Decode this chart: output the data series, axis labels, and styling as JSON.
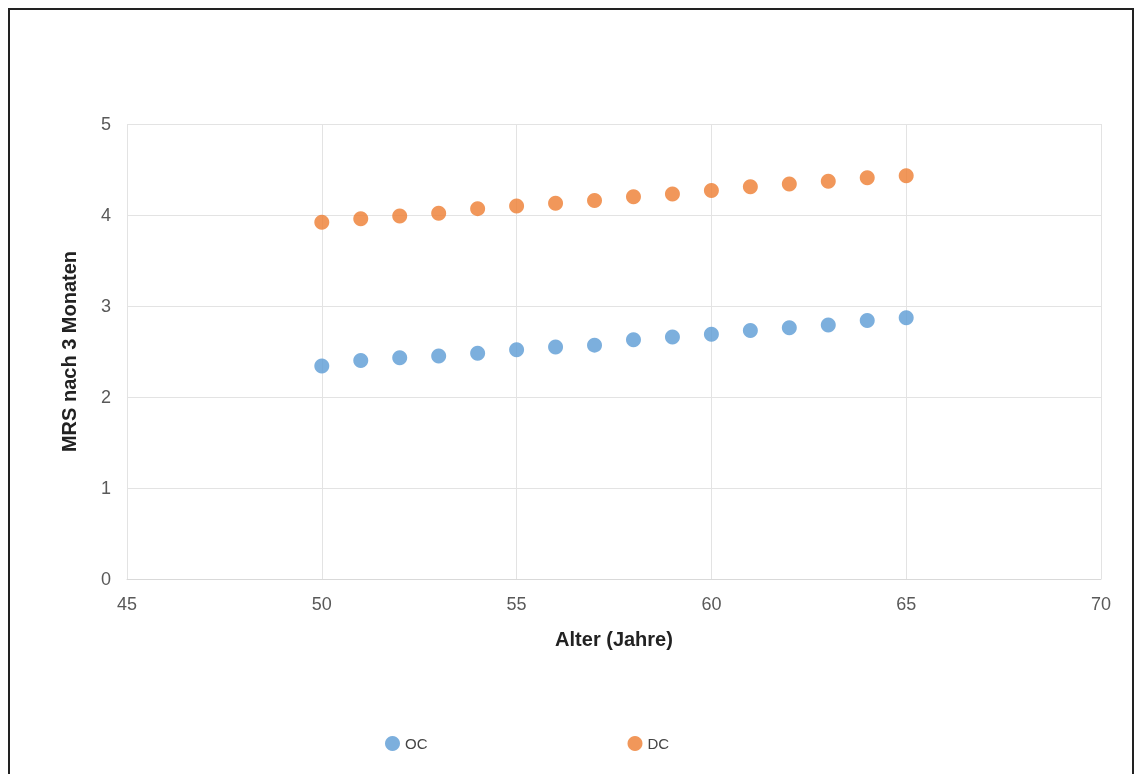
{
  "chart_data": {
    "type": "scatter",
    "xlabel": "Alter (Jahre)",
    "ylabel": "MRS nach 3 Monaten",
    "x": [
      50,
      51,
      52,
      53,
      54,
      55,
      56,
      57,
      58,
      59,
      60,
      61,
      62,
      63,
      64,
      65
    ],
    "series": [
      {
        "name": "OC",
        "color": "#5b9bd5",
        "values": [
          2.34,
          2.4,
          2.43,
          2.45,
          2.48,
          2.52,
          2.55,
          2.57,
          2.63,
          2.66,
          2.69,
          2.73,
          2.76,
          2.79,
          2.84,
          2.87
        ]
      },
      {
        "name": "DC",
        "color": "#ed7d31",
        "values": [
          3.92,
          3.96,
          3.99,
          4.02,
          4.07,
          4.1,
          4.13,
          4.16,
          4.2,
          4.23,
          4.27,
          4.31,
          4.34,
          4.37,
          4.41,
          4.43
        ]
      }
    ],
    "xlim": [
      45,
      70
    ],
    "xticks": [
      45,
      50,
      55,
      60,
      65,
      70
    ],
    "ylim": [
      0,
      5
    ],
    "yticks": [
      0,
      1,
      2,
      3,
      4,
      5
    ],
    "grid": true,
    "legend": "bottom",
    "marker": "circle"
  }
}
